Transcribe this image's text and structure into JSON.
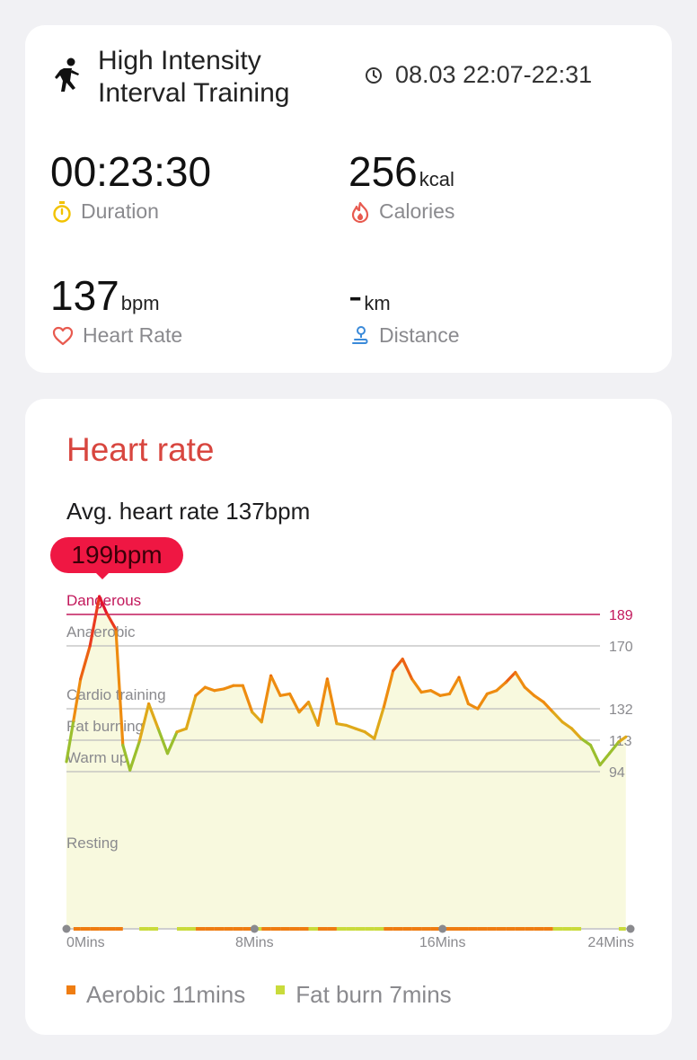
{
  "workout": {
    "name_line1": "High Intensity",
    "name_line2": "Interval Training",
    "time_range": "08.03 22:07-22:31"
  },
  "stats": {
    "duration": {
      "value": "00:23:30",
      "label": "Duration"
    },
    "calories": {
      "value": "256",
      "unit": "kcal",
      "label": "Calories"
    },
    "heart_rate": {
      "value": "137",
      "unit": "bpm",
      "label": "Heart Rate"
    },
    "distance": {
      "value": "-",
      "unit": "km",
      "label": "Distance"
    }
  },
  "heart_rate_card": {
    "title": "Heart rate",
    "average": "Avg. heart rate 137bpm",
    "peak_badge": "199bpm"
  },
  "colors": {
    "dangerous": "#c2185b",
    "aerobic": "#ef7d12",
    "fat_burn": "#c9db3b",
    "peak_badge": "#ef1743"
  },
  "chart_data": {
    "type": "line",
    "y_unit": "bpm",
    "ylim": [
      0,
      205
    ],
    "xlim": [
      0,
      24
    ],
    "x_ticks": [
      "0Mins",
      "8Mins",
      "16Mins",
      "24Mins"
    ],
    "zones": [
      {
        "name": "Dangerous",
        "threshold": 189,
        "threshold_label": "189"
      },
      {
        "name": "Anaerobic",
        "threshold": 170,
        "threshold_label": "170"
      },
      {
        "name": "Cardio training",
        "threshold": 132,
        "threshold_label": "132"
      },
      {
        "name": "Fat burning",
        "threshold": 113,
        "threshold_label": "113"
      },
      {
        "name": "Warm up",
        "threshold": 94,
        "threshold_label": "94"
      },
      {
        "name": "Resting",
        "threshold": null,
        "threshold_label": ""
      }
    ],
    "series": [
      {
        "x": [
          0,
          0.3,
          0.6,
          1.0,
          1.4,
          1.7,
          2.1,
          2.4,
          2.7,
          3.1,
          3.5,
          3.9,
          4.3,
          4.7,
          5.1,
          5.5,
          5.9,
          6.3,
          6.7,
          7.1,
          7.5,
          7.9,
          8.3,
          8.7,
          9.1,
          9.5,
          9.9,
          10.3,
          10.7,
          11.1,
          11.5,
          11.9,
          12.3,
          12.7,
          13.1,
          13.5,
          13.9,
          14.3,
          14.7,
          15.1,
          15.5,
          15.9,
          16.3,
          16.7,
          17.1,
          17.5,
          17.9,
          18.3,
          18.7,
          19.1,
          19.5,
          19.9,
          20.3,
          20.7,
          21.1,
          21.5,
          21.9,
          22.3,
          22.7,
          23.1,
          23.5,
          23.8
        ],
        "y": [
          100,
          125,
          150,
          170,
          199,
          190,
          180,
          110,
          95,
          112,
          135,
          120,
          105,
          118,
          120,
          140,
          145,
          143,
          144,
          146,
          146,
          130,
          124,
          152,
          140,
          141,
          130,
          136,
          122,
          150,
          123,
          122,
          120,
          118,
          114,
          133,
          155,
          162,
          150,
          142,
          143,
          140,
          141,
          151,
          135,
          132,
          141,
          143,
          148,
          154,
          145,
          140,
          136,
          130,
          124,
          120,
          114,
          110,
          98,
          105,
          112,
          115
        ]
      }
    ],
    "legend": [
      {
        "label": "Aerobic 11mins",
        "color": "#ef7d12"
      },
      {
        "label": "Fat burn 7mins",
        "color": "#c9db3b"
      }
    ]
  }
}
